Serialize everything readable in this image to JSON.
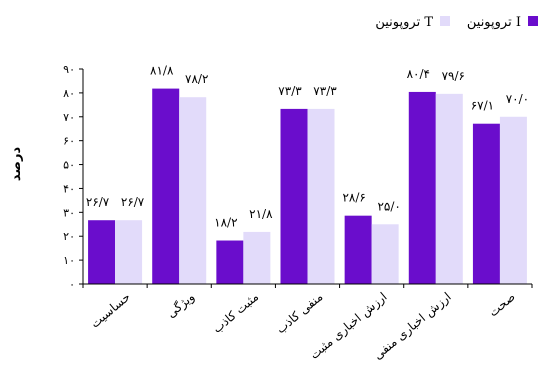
{
  "chart_data": {
    "type": "bar",
    "ylabel": "درصد",
    "ylim": [
      0,
      90
    ],
    "yticks": [
      0,
      10,
      20,
      30,
      40,
      50,
      60,
      70,
      80,
      90
    ],
    "ytick_labels": [
      "۰",
      "۱۰",
      "۲۰",
      "۳۰",
      "۴۰",
      "۵۰",
      "۶۰",
      "۷۰",
      "۸۰",
      "۹۰"
    ],
    "categories": [
      "حساسیت",
      "ویژگی",
      "مثبت کاذب",
      "منفی کاذب",
      "ارزش اخباری مثبت",
      "ارزش اخباری منفی",
      "صحت"
    ],
    "legend_position": "top-right",
    "series": [
      {
        "name": "تروپونین I",
        "color": "#6a0dcc",
        "values": [
          26.7,
          81.8,
          18.2,
          73.3,
          28.6,
          80.4,
          67.1
        ],
        "labels": [
          "۲۶/۷",
          "۸۱/۸",
          "۱۸/۲",
          "۷۳/۳",
          "۲۸/۶",
          "۸۰/۴",
          "۶۷/۱"
        ]
      },
      {
        "name": "تروپونین T",
        "color": "#e2dbfa",
        "values": [
          26.7,
          78.2,
          21.8,
          73.3,
          25.0,
          79.6,
          70.0
        ],
        "labels": [
          "۲۶/۷",
          "۷۸/۲",
          "۲۱/۸",
          "۷۳/۳",
          "۲۵/۰",
          "۷۹/۶",
          "۷۰/۰"
        ]
      }
    ]
  }
}
